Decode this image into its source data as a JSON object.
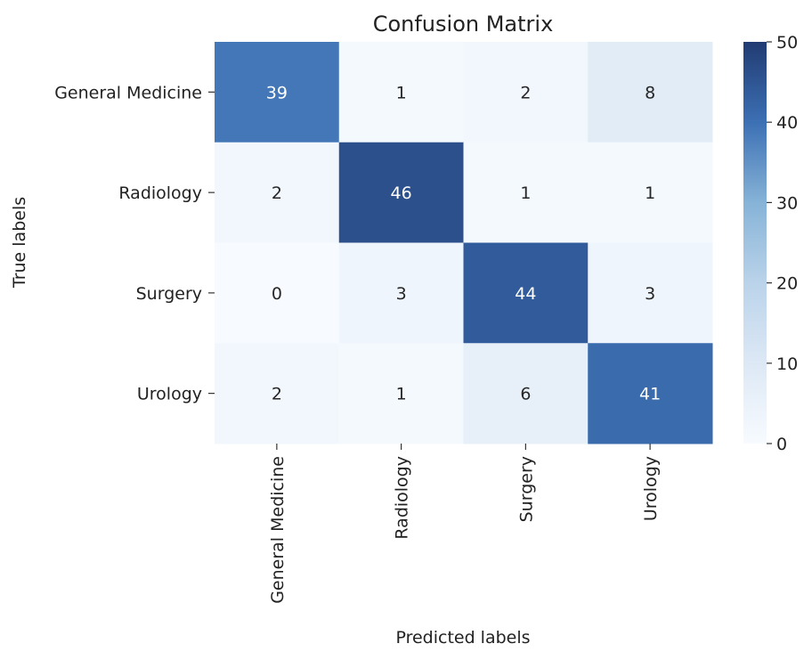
{
  "chart_data": {
    "type": "heatmap",
    "title": "Confusion Matrix",
    "xlabel": "Predicted labels",
    "ylabel": "True labels",
    "x_categories": [
      "General Medicine",
      "Radiology",
      "Surgery",
      "Urology"
    ],
    "y_categories": [
      "General Medicine",
      "Radiology",
      "Surgery",
      "Urology"
    ],
    "values": [
      [
        39,
        1,
        2,
        8
      ],
      [
        2,
        46,
        1,
        1
      ],
      [
        0,
        3,
        44,
        3
      ],
      [
        2,
        1,
        6,
        41
      ]
    ],
    "colorbar": {
      "min": 0,
      "max": 50,
      "ticks": [
        0,
        10,
        20,
        30,
        40,
        50
      ]
    },
    "colormap": "Blues",
    "colors": {
      "low": "#f7fbff",
      "high": "#213b72"
    }
  }
}
